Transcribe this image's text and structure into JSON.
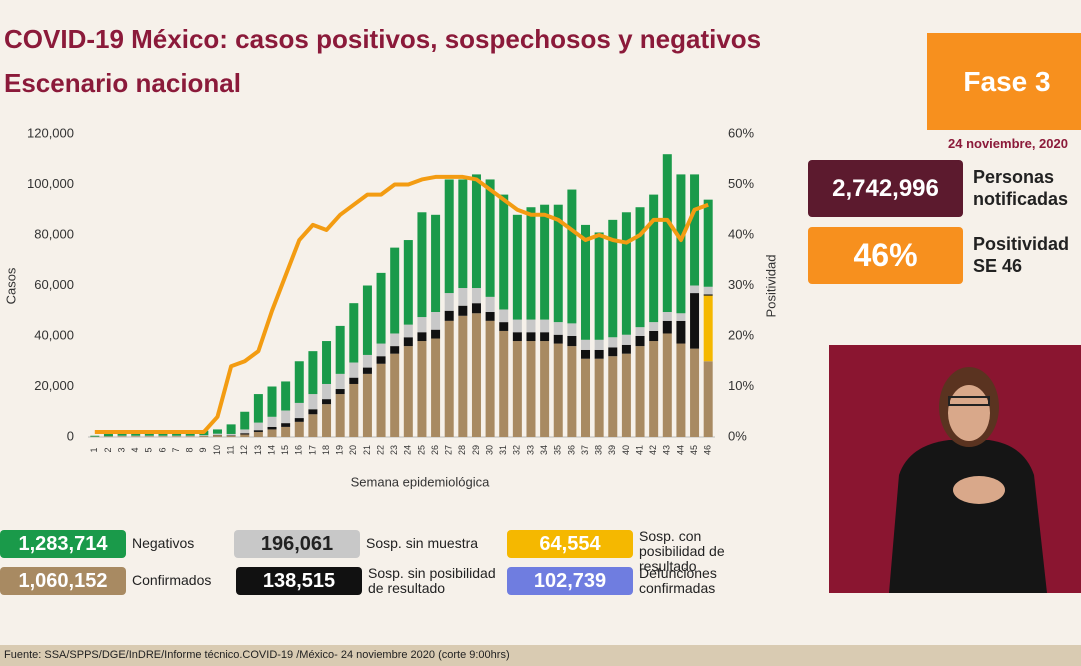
{
  "header": {
    "title": "COVID-19 México: casos positivos, sospechosos y negativos",
    "subtitle": "Escenario nacional",
    "phase": "Fase 3",
    "date": "24 noviembre, 2020"
  },
  "kpis": [
    {
      "figure": "2,742,996",
      "label": "Personas notificadas",
      "color": "#5c1a2e"
    },
    {
      "figure": "46%",
      "label": "Positividad SE 46",
      "color": "#f7901e"
    }
  ],
  "deaths": {
    "figure": "102,739",
    "label": "Defunciones confirmadas",
    "color": "#6f7de0"
  },
  "footer": "Fuente: SSA/SPPS/DGE/InDRE/Informe técnico.COVID-19 /México- 24 noviembre 2020 (corte 9:00hrs)",
  "chart_data": {
    "type": "bar",
    "x_label": "Semana epidemiológica",
    "y_label": "Casos",
    "y2_label": "Positividad",
    "categories": [
      "1",
      "2",
      "3",
      "4",
      "5",
      "6",
      "7",
      "8",
      "9",
      "10",
      "11",
      "12",
      "13",
      "14",
      "15",
      "16",
      "17",
      "18",
      "19",
      "20",
      "21",
      "22",
      "23",
      "24",
      "25",
      "26",
      "27",
      "28",
      "29",
      "30",
      "31",
      "32",
      "33",
      "34",
      "35",
      "36",
      "37",
      "38",
      "39",
      "40",
      "41",
      "42",
      "43",
      "44",
      "45",
      "46"
    ],
    "ylim": [
      0,
      120000
    ],
    "yticks": [
      0,
      {
        "value": 20000,
        "label": "20,000"
      },
      {
        "value": 40000,
        "label": "40,000"
      },
      {
        "value": 60000,
        "label": "60,000"
      },
      {
        "value": 80000,
        "label": "80,000"
      },
      {
        "value": 100000,
        "label": "100,000"
      },
      {
        "value": 120000,
        "label": "120,000"
      }
    ],
    "y2lim": [
      0,
      60
    ],
    "y2ticks": [
      {
        "value": 0,
        "label": "0%"
      },
      {
        "value": 10,
        "label": "10%"
      },
      {
        "value": 20,
        "label": "20%"
      },
      {
        "value": 30,
        "label": "30%"
      },
      {
        "value": 40,
        "label": "40%"
      },
      {
        "value": 50,
        "label": "50%"
      },
      {
        "value": 60,
        "label": "60%"
      }
    ],
    "grid": false,
    "stacked": true,
    "series": [
      {
        "name": "Confirmados",
        "color": "#a88a62",
        "total_label": "1,060,152",
        "values": [
          100,
          200,
          300,
          300,
          300,
          300,
          300,
          300,
          400,
          700,
          500,
          1000,
          2000,
          3000,
          4000,
          6000,
          9000,
          13000,
          17000,
          21000,
          25000,
          29000,
          33000,
          36000,
          38000,
          39000,
          46000,
          48000,
          49000,
          46000,
          42000,
          38000,
          38000,
          38000,
          37000,
          36000,
          31000,
          31000,
          32000,
          33000,
          36000,
          38000,
          41000,
          37000,
          35000,
          30000
        ]
      },
      {
        "name": "Sosp. con posibilidad de resultado",
        "color": "#f5b800",
        "total_label": "64,554",
        "values": [
          0,
          0,
          0,
          0,
          0,
          0,
          0,
          0,
          0,
          0,
          0,
          0,
          0,
          0,
          0,
          0,
          0,
          0,
          0,
          0,
          0,
          0,
          0,
          0,
          0,
          0,
          0,
          0,
          0,
          0,
          0,
          0,
          0,
          0,
          0,
          0,
          0,
          0,
          0,
          0,
          0,
          0,
          0,
          0,
          0,
          26000
        ]
      },
      {
        "name": "Sosp. sin posibilidad de resultado",
        "color": "#111111",
        "total_label": "138,515",
        "values": [
          0,
          0,
          0,
          0,
          0,
          0,
          0,
          0,
          0,
          100,
          200,
          500,
          700,
          1000,
          1500,
          1500,
          2000,
          2000,
          2000,
          2500,
          2500,
          3000,
          3000,
          3500,
          3500,
          3500,
          4000,
          4000,
          4000,
          3500,
          3500,
          3500,
          3500,
          3500,
          3500,
          4000,
          3500,
          3500,
          3500,
          3500,
          4000,
          4000,
          5000,
          9000,
          22000,
          500
        ]
      },
      {
        "name": "Sosp. sin muestra",
        "color": "#c8c8c8",
        "total_label": "196,061",
        "values": [
          50,
          100,
          200,
          200,
          200,
          200,
          200,
          200,
          300,
          500,
          500,
          1500,
          3000,
          4000,
          5000,
          6000,
          6000,
          6000,
          6000,
          6000,
          5000,
          5000,
          5000,
          5000,
          6000,
          7000,
          7000,
          7000,
          6000,
          6000,
          5000,
          5000,
          5000,
          5000,
          5000,
          5000,
          4000,
          4000,
          4000,
          4000,
          3500,
          3500,
          3500,
          3000,
          3000,
          3000
        ]
      },
      {
        "name": "Negativos",
        "color": "#1a9a4a",
        "total_label": "1,283,714",
        "values": [
          350,
          1200,
          2000,
          2000,
          1500,
          1500,
          1500,
          1500,
          1800,
          1700,
          3800,
          7000,
          11300,
          12000,
          11500,
          16500,
          17000,
          17000,
          19000,
          23500,
          27500,
          28000,
          34000,
          33500,
          41500,
          38500,
          45000,
          43000,
          45000,
          46500,
          45500,
          41500,
          44500,
          45500,
          46500,
          53000,
          45500,
          42500,
          46500,
          48500,
          47500,
          50500,
          62500,
          55000,
          44000,
          34500
        ]
      },
      {
        "name": "Positividad",
        "type": "line",
        "axis": "y2",
        "color": "#f39c12",
        "values": [
          1,
          1,
          1,
          1,
          1,
          1,
          1,
          1,
          1,
          4,
          14,
          15,
          17,
          25,
          32,
          39,
          42,
          41,
          44,
          46,
          48,
          48,
          50,
          50,
          51,
          51.5,
          51.5,
          51.5,
          51,
          49,
          47,
          45,
          44,
          44,
          43,
          41,
          39,
          40,
          39,
          38.5,
          40,
          43,
          43,
          39,
          45,
          46
        ]
      }
    ]
  }
}
